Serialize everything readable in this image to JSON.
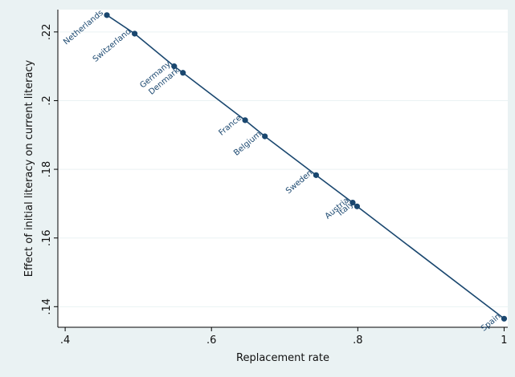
{
  "chart_data": {
    "type": "scatter",
    "title": "",
    "xlabel": "Replacement rate",
    "ylabel": "Effect of initial literacy on current literacy",
    "xlim": [
      0.39,
      1.005
    ],
    "ylim": [
      0.134,
      0.2265
    ],
    "xticks": [
      {
        "value": 0.4,
        "label": ".4"
      },
      {
        "value": 0.6,
        "label": ".6"
      },
      {
        "value": 0.8,
        "label": ".8"
      },
      {
        "value": 1.0,
        "label": "1"
      }
    ],
    "yticks": [
      {
        "value": 0.14,
        "label": ".14"
      },
      {
        "value": 0.16,
        "label": ".16"
      },
      {
        "value": 0.18,
        "label": ".18"
      },
      {
        "value": 0.2,
        "label": ".2"
      },
      {
        "value": 0.22,
        "label": ".22"
      }
    ],
    "grid": "horizontal",
    "series": [
      {
        "color": "#1a476f",
        "points": [
          {
            "label": "Netherlands",
            "x": 0.457,
            "y": 0.2249
          },
          {
            "label": "Switzerland",
            "x": 0.495,
            "y": 0.2195
          },
          {
            "label": "Germany",
            "x": 0.549,
            "y": 0.21
          },
          {
            "label": "Denmark",
            "x": 0.561,
            "y": 0.2081
          },
          {
            "label": "France",
            "x": 0.646,
            "y": 0.1943
          },
          {
            "label": "Belgium",
            "x": 0.673,
            "y": 0.1896
          },
          {
            "label": "Sweden",
            "x": 0.743,
            "y": 0.1783
          },
          {
            "label": "Austria",
            "x": 0.793,
            "y": 0.1703
          },
          {
            "label": "Italy",
            "x": 0.799,
            "y": 0.1692
          },
          {
            "label": "Spain",
            "x": 1.0,
            "y": 0.1365
          }
        ]
      }
    ]
  }
}
